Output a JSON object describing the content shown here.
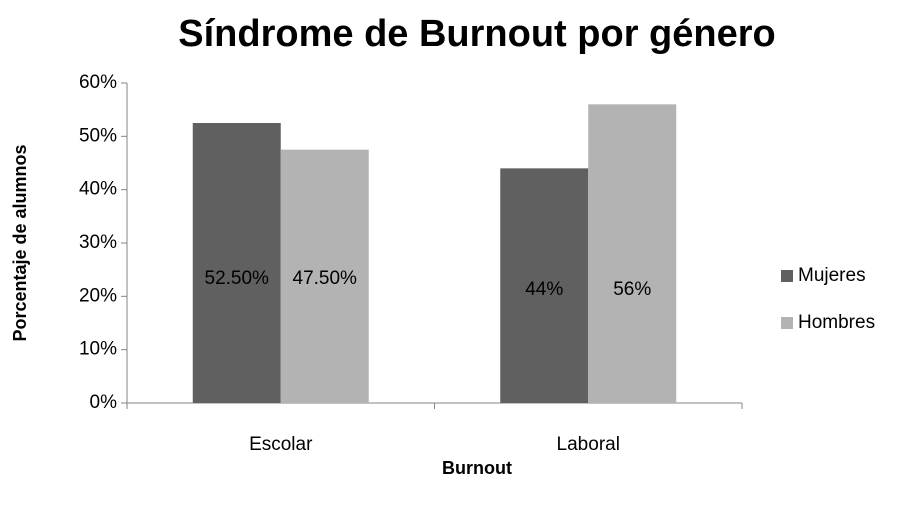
{
  "chart_data": {
    "type": "bar",
    "title": "Síndrome de Burnout por género",
    "x_label": "Burnout",
    "y_label": "Porcentaje de alumnos",
    "categories": [
      "Escolar",
      "Laboral"
    ],
    "series": [
      {
        "name": "Mujeres",
        "color": "#606060",
        "values": [
          52.5,
          44
        ],
        "value_labels": [
          "52.50%",
          "44%"
        ]
      },
      {
        "name": "Hombres",
        "color": "#b3b3b3",
        "values": [
          47.5,
          56
        ],
        "value_labels": [
          "47.50%",
          "56%"
        ]
      }
    ],
    "ylim": [
      0,
      60
    ],
    "yticks": [
      {
        "value": 0,
        "label": "0%"
      },
      {
        "value": 10,
        "label": "10%"
      },
      {
        "value": 20,
        "label": "20%"
      },
      {
        "value": 30,
        "label": "30%"
      },
      {
        "value": 40,
        "label": "40%"
      },
      {
        "value": 50,
        "label": "50%"
      },
      {
        "value": 60,
        "label": "60%"
      }
    ],
    "grid": false,
    "legend": "right"
  }
}
